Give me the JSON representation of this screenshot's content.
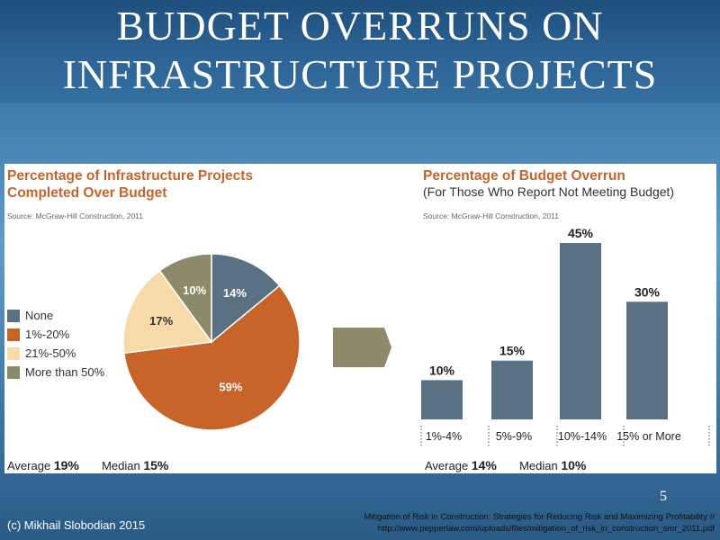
{
  "slide": {
    "title_line1": "BUDGET OVERRUNS ON",
    "title_line2": "INFRASTRUCTURE PROJECTS",
    "slide_number": "5",
    "copyright": "(c) Mikhail Slobodian 2015",
    "citation_line1": "Mitigation of Risk in Construction: Strategies for Reducing Risk and Maximizing Profitability //",
    "citation_line2": "http://www.pepperlaw.com/uploads/files/mitigation_of_risk_in_construction_smr_2011.pdf"
  },
  "left": {
    "heading_line1": "Percentage of Infrastructure Projects",
    "heading_line2": "Completed Over Budget",
    "source": "Source: McGraw-Hill Construction, 2011",
    "average_label": "Average",
    "average_value": "19%",
    "median_label": "Median",
    "median_value": "15%"
  },
  "right": {
    "heading": "Percentage of Budget Overrun",
    "subheading": "(For Those Who Report Not Meeting Budget)",
    "source": "Source: McGraw-Hill Construction, 2011",
    "average_label": "Average",
    "average_value": "14%",
    "median_label": "Median",
    "median_value": "10%"
  },
  "colors": {
    "slate": "#5a7184",
    "rust": "#c8642a",
    "peach": "#f8d9a8",
    "olive": "#8c8a6a",
    "heading": "#c8642a",
    "arrow": "#8c8a6a"
  },
  "chart_data": [
    {
      "type": "pie",
      "categories": [
        "None",
        "1%-20%",
        "21%-50%",
        "More than 50%"
      ],
      "values": [
        14,
        59,
        17,
        10
      ],
      "data_labels": [
        "14%",
        "59%",
        "17%",
        "10%"
      ],
      "colors": [
        "#5a7184",
        "#c8642a",
        "#f8d9a8",
        "#8c8a6a"
      ],
      "title": "Percentage of Infrastructure Projects Completed Over Budget",
      "legend": "left"
    },
    {
      "type": "bar",
      "categories": [
        "1%-4%",
        "5%-9%",
        "10%-14%",
        "15% or More"
      ],
      "values": [
        10,
        15,
        45,
        30
      ],
      "data_labels": [
        "10%",
        "15%",
        "45%",
        "30%"
      ],
      "title": "Percentage of Budget Overrun",
      "subtitle": "(For Those Who Report Not Meeting Budget)",
      "ylim": [
        0,
        45
      ],
      "grid": false
    }
  ]
}
